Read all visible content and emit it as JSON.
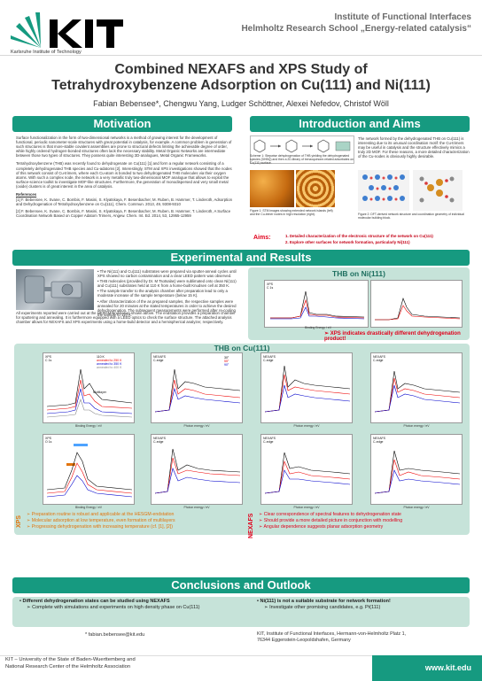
{
  "header": {
    "logo_text": "KIT",
    "logo_sub": "Karlsruhe Institute of Technology",
    "institute": "Institute of Functional Interfaces",
    "school": "Helmholtz Research School „Energy-related catalysis“",
    "title_line1": "Combined NEXAFS and XPS Study of",
    "title_line2": "Tetrahydroxybenzene Adsorption on Cu(111) and Ni(111)",
    "authors": "Fabian Bebensee*, Chengwu Yang, Ludger Schöttner, Alexei Nefedov, Christof Wöll"
  },
  "sections": {
    "motivation": "Motivation",
    "intro": "Introduction and Aims",
    "experimental": "Experimental and Results",
    "conclusions": "Conclusions and Outlook"
  },
  "motivation": {
    "p1": "Surface functionalization in the form of two-dimensional networks is a method of growing interest for the development of functional, periodic nanometer-scale structures with great potential in catalysis, for example. A common problem in generation of such structures is that more-stable covalent assemblies are prone to structural defects limiting the achievable degree of order, while highly ordered hydrogen-bonded structures often lack the necessary stability. Metal Organic Networks are intermediate between those two types of structures. They possess quite interesting 3D-analogues, Metal Organic Frameworks.",
    "p2": "Tetrahydroxybenzene (THB) was recently found to dehydrogenate on Cu(111) [1] and form a regular network consisting of a completely dehydrogenated THB species and Cu-adatoms [2]. Interestingly, STM and XPS investigations showed that the nodes of this network consist of Cu-trimers, where each Cu-atom is bonded to two dehydrogenated THB molecules via their oxygen atoms. With such a complex node, the network is a very metallic truly two-dimensional MOF analogue that allows to exploit the surface-science toolkit to investigate MOF-like structures. Furthermore, the generation of monodispersed and very small metal (oxide) clusters is of great interest in the area of catalysis.",
    "refs_title": "References",
    "ref1": "[1] F. Bebensee, K. Svane, C. Bombis, F. Masini, S. Klyatskaya, F. Besenbacher, M. Ruben, B. Hammer, T. Linderoth, Adsorption and Dehydrogenation of Tetrahydroxybenzene on Cu(111), Chem. Commun. 2013, 49, 9308-9310",
    "ref2": "[2] F. Bebensee, K. Svane, C. Bombis, F. Masini, S. Klyatskaya, F. Besenbacher, M. Ruben, B. Hammer, T. Linderoth, A Surface Coordination Network Based on Copper Adatom Trimers, Angew. Chem. Int. Ed. 2014, 53, 12955-12959"
  },
  "intro": {
    "scheme_caption": "Scheme 1: Stepwise dehydrogenation of THB yielding the dehydrogenated species (DHBQ) and then a 2D-library of benzoquinone-related adsorbates on Cu(111) surface.",
    "text": "The network formed by the dehydrogenated THB on Cu(111) is interesting due to its unusual coordination motif: the Cu-trimers may be useful in catalysis and the structure effectively mimics a truly 2D MOF. For these reasons, a more detailed characterization of the Cu-nodes is obviously highly desirable.",
    "fig1_caption": "Figure 1: STM images showing extended network islands (left) and the Cu-trimer nodes in high resolution (right).",
    "fig2_caption": "Figure 2: DFT-derived network structure and coordination geometry of individual molecular building block.",
    "aims_label": "Aims:",
    "aim1": "1. Detailed characterization of the electronic structure of the network on Cu(111)",
    "aim2": "2. Explore other surfaces for network formation, particularly Ni(111)"
  },
  "experimental": {
    "bullet1": "The Ni(111) and Cu(111) substrates were prepared via sputter-anneal cycles until XPS showed no carbon contamination and a clear LEED pattern was observed.",
    "bullet2": "THB molecules (provided by Dr. M Tsotsalas) were sublimated onto clean Ni(111) and Cu(111) substrates held at 110 K from a home-built Knudsen cell at 350 K.",
    "bullet3": "The sample transfer to the analysis chamber after preparation lead to only a moderate increase of the sample temperature (below 15 K).",
    "bullet4": "After characterization of the as prepared samples, the respective samples were annealed for 20 minutes at the stated temperatures in order to achieve the desired dehydrogenation. The subsequent measurements were performed after re-cooling the sample to 110 K.",
    "setup": "All experiments reported were carried out at the HESGM-endstation shown above. The endstation provides a preparation chamber for sputtering and annealing. It is furthermore equipped with a LEED optics to check the surface structure. The attached analysis chamber allows for NEXAFS and XPS experiments using a home-build detector and a hemispherical analyzer, respectively.",
    "thb_ni_title": "THB on Ni(111)",
    "ni_note": "➢ XPS indicates drastically different dehydrogenation product!",
    "thb_cu_title": "THB on Cu(111)",
    "xps_tag": "XPS",
    "nexafs_tag": "NEXAFS",
    "xps1": "➢ Preparation routine is robust and applicable at the HESGM-endstation",
    "xps2": "➢ Molecular adsorption at low temperature, even formation of multilayers",
    "xps3": "➢ Progressing dehydrogenation with increasing temperature (cf. [1], [2])",
    "nex1": "➢ Clear correspondence of spectral features to dehydrogenation state",
    "nex2": "➢ Should provide a more detailed picture in conjunction with modelling",
    "nex3": "➢ Angular dependence suggests planar adsorption geometry"
  },
  "graphs": {
    "ni_xps": {
      "l1": "XPS",
      "l2": "C 1s",
      "xlabel": "Binding Energy / eV",
      "ylabel": "Intensity / a.u."
    },
    "cu_xps_c": {
      "l1": "XPS",
      "l2": "C 1s",
      "xlabel": "Binding Energy / eV",
      "ylabel": "Intensity / arb. Units",
      "multilayer": "Multilayer"
    },
    "cu_xps_o": {
      "l1": "XPS",
      "l2": "O 1s",
      "xlabel": "Binding Energy / eV",
      "ylabel": "Intensity / arb. Units"
    },
    "nexafs": {
      "l1": "NEXAFS",
      "l2": "C-edge",
      "xlabel": "Photon energy / eV",
      "ylabel": "Intensity / a.u."
    },
    "legend_xps": [
      "110 K",
      "annealed to 250 K",
      "annealed to 350 K",
      "annealed to 400 K"
    ],
    "legend_nex": [
      "30°",
      "55°",
      "90°"
    ]
  },
  "conclusions": {
    "c1": "Different dehydrogenation states can be studied using NEXAFS",
    "c1a": "➢ Complete with simulations and experiments on high density phase on Cu(111)",
    "c2": "Ni(111) is not a suitable substrate for network formation!",
    "c2a": "➢ Investigate other promising candidates, e.g. Pt(111)"
  },
  "footer": {
    "email": "fabian.bebensee@kit.edu",
    "address1": "KIT, Institute of Functional Interfaces, Hermann-von-Helmholtz Platz 1,",
    "address2": "76344 Eggenstein-Leopoldshafen, Germany",
    "kit_line1": "KIT – University of the State of Baden-Wuerttemberg and",
    "kit_line2": "National Research Center of the Helmholtz Association",
    "url": "www.kit.edu"
  },
  "colors": {
    "accent": "#169a80",
    "accent_light": "#c6e3d9",
    "aims_red": "#e0001b",
    "xps_orange": "#e2740c"
  }
}
